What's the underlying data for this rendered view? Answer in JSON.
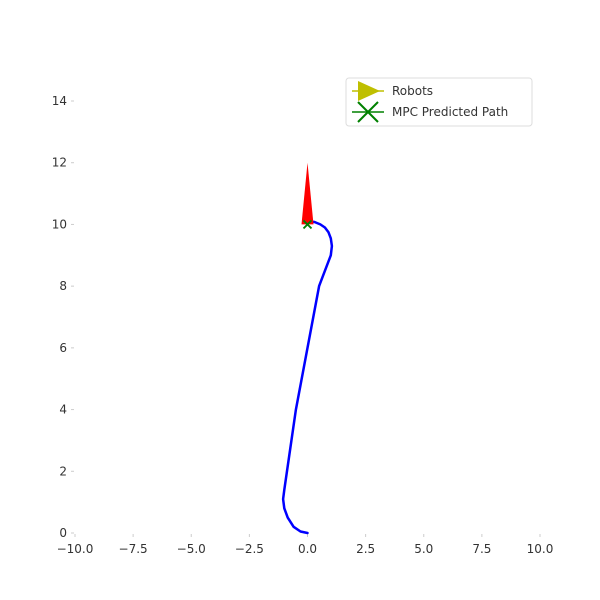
{
  "chart_data": {
    "type": "line",
    "title": "",
    "xlabel": "",
    "ylabel": "",
    "xlim": [
      -10,
      10
    ],
    "ylim": [
      0,
      15
    ],
    "x_ticks": [
      -10.0,
      -7.5,
      -5.0,
      -2.5,
      0.0,
      2.5,
      5.0,
      7.5,
      10.0
    ],
    "x_tick_labels": [
      "−10.0",
      "−7.5",
      "−5.0",
      "−2.5",
      "0.0",
      "2.5",
      "5.0",
      "7.5",
      "10.0"
    ],
    "y_ticks": [
      0,
      2,
      4,
      6,
      8,
      10,
      12,
      14
    ],
    "y_tick_labels": [
      "0",
      "2",
      "4",
      "6",
      "8",
      "10",
      "12",
      "14"
    ],
    "grid": false,
    "legend_position": "top-right",
    "legend": [
      {
        "label": "Robots",
        "marker": "triangle-right",
        "color": "#bfbf00"
      },
      {
        "label": "MPC Predicted Path",
        "marker": "x",
        "color": "#008000"
      }
    ],
    "series": [
      {
        "kind": "line",
        "color": "#0000ff",
        "x": [
          0.0,
          -0.3,
          -0.6,
          -0.85,
          -1.0,
          -1.05,
          -1.0,
          -0.5,
          0.0,
          0.5,
          1.0,
          1.05,
          1.0,
          0.9,
          0.75,
          0.55,
          0.3,
          0.05
        ],
        "y": [
          0.0,
          0.05,
          0.2,
          0.5,
          0.8,
          1.1,
          1.4,
          4.0,
          6.0,
          8.0,
          9.0,
          9.3,
          9.55,
          9.75,
          9.9,
          10.0,
          10.08,
          10.1
        ]
      }
    ],
    "robot": {
      "x": 0.0,
      "y": 10.0,
      "heading_deg": 90,
      "arrow_length": 2.0,
      "color": "#ff0000"
    },
    "predicted_marker": {
      "x": 0.0,
      "y": 10.0,
      "color": "#008000"
    }
  }
}
